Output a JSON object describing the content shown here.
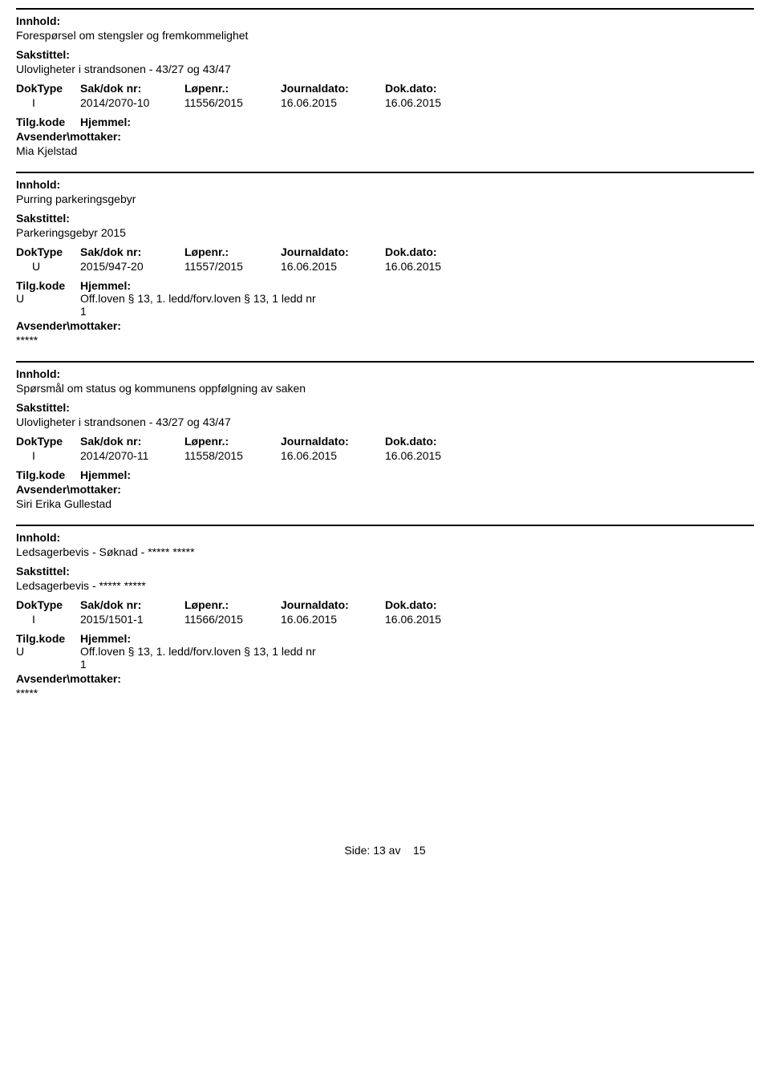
{
  "labels": {
    "innhold": "Innhold:",
    "sakstittel": "Sakstittel:",
    "doktype": "DokType",
    "saknr": "Sak/dok nr:",
    "lopenr": "Løpenr.:",
    "journaldato": "Journaldato:",
    "dokdato": "Dok.dato:",
    "tilgkode": "Tilg.kode",
    "hjemmel": "Hjemmel:",
    "avsender": "Avsender\\mottaker:"
  },
  "entries": [
    {
      "innhold": "Forespørsel om stengsler og fremkommelighet",
      "sakstittel": "Ulovligheter i strandsonen - 43/27 og 43/47",
      "doktype": "I",
      "saknr": "2014/2070-10",
      "lopenr": "11556/2015",
      "journaldato": "16.06.2015",
      "dokdato": "16.06.2015",
      "tilgkode": "",
      "hjemmel": "",
      "avsender": "Mia Kjelstad"
    },
    {
      "innhold": "Purring parkeringsgebyr",
      "sakstittel": "Parkeringsgebyr  2015",
      "doktype": "U",
      "saknr": "2015/947-20",
      "lopenr": "11557/2015",
      "journaldato": "16.06.2015",
      "dokdato": "16.06.2015",
      "tilgkode": "U",
      "hjemmel": "Off.loven § 13, 1. ledd/forv.loven § 13, 1 ledd nr 1",
      "avsender": "*****"
    },
    {
      "innhold": "Spørsmål om status og kommunens oppfølgning av saken",
      "sakstittel": "Ulovligheter i strandsonen - 43/27 og 43/47",
      "doktype": "I",
      "saknr": "2014/2070-11",
      "lopenr": "11558/2015",
      "journaldato": "16.06.2015",
      "dokdato": "16.06.2015",
      "tilgkode": "",
      "hjemmel": "",
      "avsender": "Siri Erika Gullestad"
    },
    {
      "innhold": "Ledsagerbevis - Søknad -  ***** *****",
      "sakstittel": "Ledsagerbevis - ***** *****",
      "doktype": "I",
      "saknr": "2015/1501-1",
      "lopenr": "11566/2015",
      "journaldato": "16.06.2015",
      "dokdato": "16.06.2015",
      "tilgkode": "U",
      "hjemmel": "Off.loven § 13, 1. ledd/forv.loven § 13, 1 ledd nr 1",
      "avsender": "*****"
    }
  ],
  "footer": {
    "side": "Side:",
    "page": "13",
    "av": "av",
    "total": "15"
  }
}
